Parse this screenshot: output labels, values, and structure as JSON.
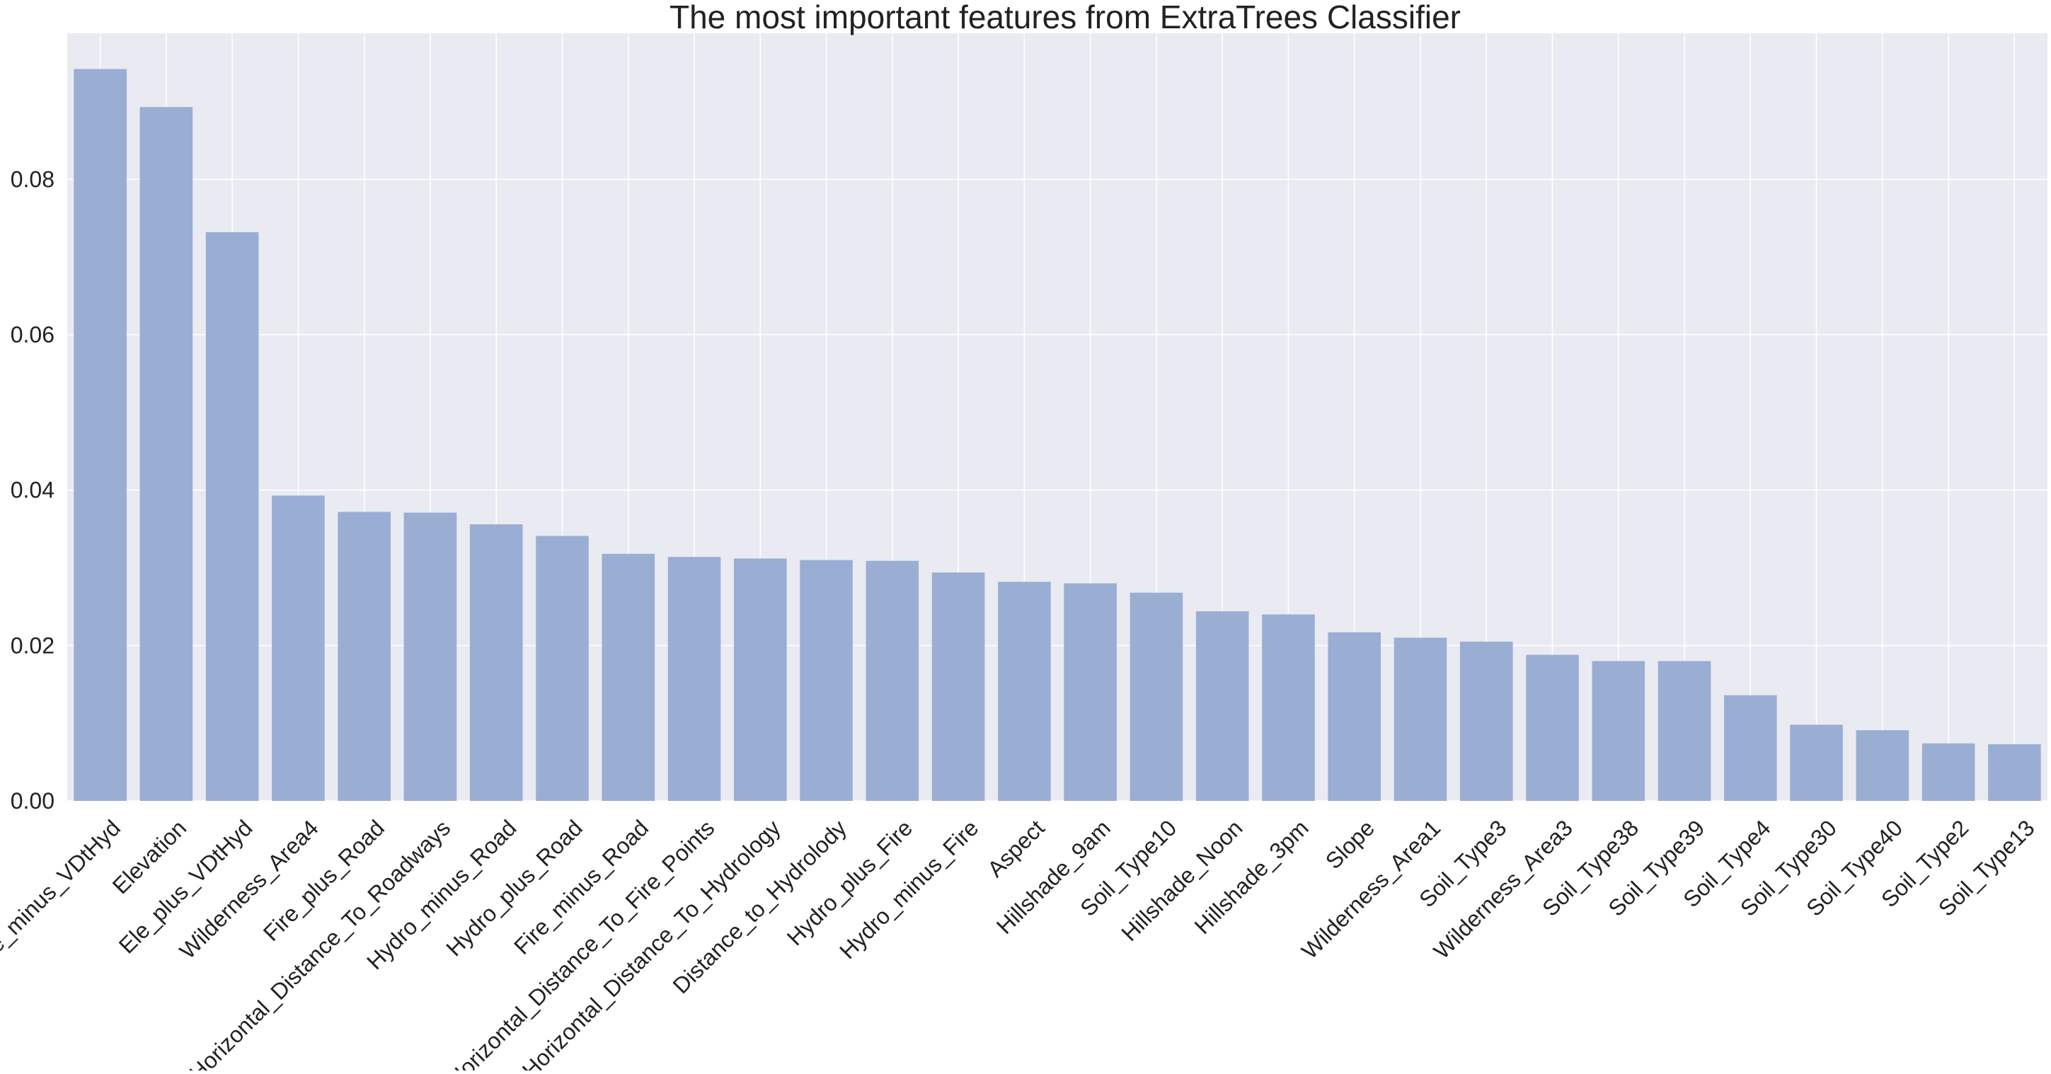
{
  "chart_data": {
    "type": "bar",
    "title": "The most important features from ExtraTrees Classifier",
    "xlabel": "",
    "ylabel": "",
    "categories": [
      "Ele_minus_VDtHyd",
      "Elevation",
      "Ele_plus_VDtHyd",
      "Wilderness_Area4",
      "Fire_plus_Road",
      "Horizontal_Distance_To_Roadways",
      "Hydro_minus_Road",
      "Hydro_plus_Road",
      "Fire_minus_Road",
      "Horizontal_Distance_To_Fire_Points",
      "Horizontal_Distance_To_Hydrology",
      "Distance_to_Hydrolody",
      "Hydro_plus_Fire",
      "Hydro_minus_Fire",
      "Aspect",
      "Hillshade_9am",
      "Soil_Type10",
      "Hillshade_Noon",
      "Hillshade_3pm",
      "Slope",
      "Wilderness_Area1",
      "Soil_Type3",
      "Wilderness_Area3",
      "Soil_Type38",
      "Soil_Type39",
      "Soil_Type4",
      "Soil_Type30",
      "Soil_Type40",
      "Soil_Type2",
      "Soil_Type13"
    ],
    "values": [
      0.0942,
      0.0893,
      0.0732,
      0.0393,
      0.0372,
      0.0371,
      0.0356,
      0.0341,
      0.0318,
      0.0314,
      0.0312,
      0.031,
      0.0309,
      0.0294,
      0.0282,
      0.028,
      0.0268,
      0.0244,
      0.024,
      0.0217,
      0.021,
      0.0205,
      0.0188,
      0.018,
      0.018,
      0.0136,
      0.0098,
      0.0091,
      0.0074,
      0.0073
    ],
    "ylim": [
      0,
      0.0988
    ],
    "yticks": [
      "0.00",
      "0.02",
      "0.04",
      "0.06",
      "0.08"
    ],
    "grid": true,
    "legend": "none",
    "colors": {
      "bar": "#9aaed3",
      "plot_background": "#eaeaf2",
      "grid": "#ffffff"
    }
  }
}
